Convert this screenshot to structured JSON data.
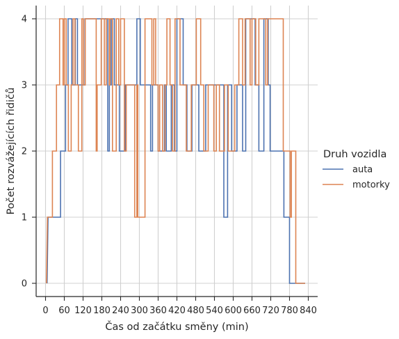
{
  "chart_data": {
    "type": "line",
    "step": true,
    "xlabel": "Čas od začátku směny (min)",
    "ylabel": "Počet rozvážejících řidičů",
    "xlim": [
      -30,
      870
    ],
    "ylim": [
      -0.2,
      4.2
    ],
    "xticks": [
      0,
      60,
      120,
      180,
      240,
      300,
      360,
      420,
      480,
      540,
      600,
      660,
      720,
      780,
      840
    ],
    "yticks": [
      0,
      1,
      2,
      3,
      4
    ],
    "grid": true,
    "legend": {
      "title": "Druh vozidla",
      "placement": "right"
    },
    "series": [
      {
        "name": "auta",
        "color": "#4c72b0",
        "points": [
          [
            5,
            0
          ],
          [
            8,
            1
          ],
          [
            48,
            1
          ],
          [
            48,
            2
          ],
          [
            64,
            2
          ],
          [
            64,
            3
          ],
          [
            72,
            3
          ],
          [
            72,
            4
          ],
          [
            84,
            4
          ],
          [
            84,
            3
          ],
          [
            95,
            3
          ],
          [
            95,
            4
          ],
          [
            102,
            4
          ],
          [
            102,
            3
          ],
          [
            126,
            3
          ],
          [
            126,
            4
          ],
          [
            199,
            4
          ],
          [
            199,
            2
          ],
          [
            204,
            2
          ],
          [
            204,
            3
          ],
          [
            210,
            3
          ],
          [
            210,
            4
          ],
          [
            220,
            4
          ],
          [
            220,
            3
          ],
          [
            236,
            3
          ],
          [
            236,
            2
          ],
          [
            255,
            2
          ],
          [
            255,
            3
          ],
          [
            292,
            3
          ],
          [
            292,
            4
          ],
          [
            303,
            4
          ],
          [
            303,
            3
          ],
          [
            336,
            3
          ],
          [
            336,
            2
          ],
          [
            342,
            2
          ],
          [
            342,
            3
          ],
          [
            360,
            3
          ],
          [
            360,
            2
          ],
          [
            380,
            2
          ],
          [
            380,
            3
          ],
          [
            386,
            3
          ],
          [
            386,
            2
          ],
          [
            402,
            2
          ],
          [
            402,
            3
          ],
          [
            412,
            3
          ],
          [
            412,
            2
          ],
          [
            420,
            2
          ],
          [
            420,
            4
          ],
          [
            440,
            4
          ],
          [
            440,
            3
          ],
          [
            452,
            3
          ],
          [
            452,
            2
          ],
          [
            468,
            2
          ],
          [
            468,
            3
          ],
          [
            490,
            3
          ],
          [
            490,
            2
          ],
          [
            512,
            2
          ],
          [
            512,
            3
          ],
          [
            570,
            3
          ],
          [
            570,
            1
          ],
          [
            582,
            1
          ],
          [
            582,
            3
          ],
          [
            595,
            3
          ],
          [
            595,
            2
          ],
          [
            612,
            2
          ],
          [
            612,
            3
          ],
          [
            630,
            3
          ],
          [
            630,
            2
          ],
          [
            640,
            2
          ],
          [
            640,
            4
          ],
          [
            670,
            4
          ],
          [
            670,
            3
          ],
          [
            682,
            3
          ],
          [
            682,
            2
          ],
          [
            698,
            2
          ],
          [
            698,
            4
          ],
          [
            712,
            4
          ],
          [
            712,
            3
          ],
          [
            718,
            3
          ],
          [
            718,
            2
          ],
          [
            762,
            2
          ],
          [
            762,
            1
          ],
          [
            780,
            1
          ],
          [
            780,
            0
          ],
          [
            830,
            0
          ]
        ]
      },
      {
        "name": "motorky",
        "color": "#dd8452",
        "points": [
          [
            3,
            0
          ],
          [
            6,
            1
          ],
          [
            22,
            1
          ],
          [
            22,
            2
          ],
          [
            35,
            2
          ],
          [
            35,
            3
          ],
          [
            45,
            3
          ],
          [
            45,
            4
          ],
          [
            56,
            4
          ],
          [
            56,
            3
          ],
          [
            60,
            3
          ],
          [
            60,
            4
          ],
          [
            66,
            4
          ],
          [
            66,
            3
          ],
          [
            73,
            3
          ],
          [
            73,
            2
          ],
          [
            82,
            2
          ],
          [
            82,
            3
          ],
          [
            88,
            3
          ],
          [
            88,
            4
          ],
          [
            94,
            4
          ],
          [
            94,
            3
          ],
          [
            105,
            3
          ],
          [
            105,
            2
          ],
          [
            116,
            2
          ],
          [
            116,
            4
          ],
          [
            121,
            4
          ],
          [
            121,
            3
          ],
          [
            127,
            3
          ],
          [
            127,
            4
          ],
          [
            162,
            4
          ],
          [
            162,
            2
          ],
          [
            165,
            2
          ],
          [
            165,
            3
          ],
          [
            178,
            3
          ],
          [
            178,
            4
          ],
          [
            188,
            4
          ],
          [
            188,
            3
          ],
          [
            194,
            3
          ],
          [
            194,
            4
          ],
          [
            204,
            4
          ],
          [
            204,
            3
          ],
          [
            206,
            3
          ],
          [
            206,
            4
          ],
          [
            214,
            4
          ],
          [
            214,
            2
          ],
          [
            226,
            2
          ],
          [
            226,
            4
          ],
          [
            234,
            4
          ],
          [
            234,
            3
          ],
          [
            240,
            3
          ],
          [
            240,
            4
          ],
          [
            252,
            4
          ],
          [
            252,
            2
          ],
          [
            258,
            2
          ],
          [
            258,
            3
          ],
          [
            285,
            3
          ],
          [
            285,
            1
          ],
          [
            292,
            1
          ],
          [
            292,
            3
          ],
          [
            295,
            3
          ],
          [
            295,
            1
          ],
          [
            318,
            1
          ],
          [
            318,
            4
          ],
          [
            340,
            4
          ],
          [
            340,
            3
          ],
          [
            346,
            3
          ],
          [
            346,
            4
          ],
          [
            352,
            4
          ],
          [
            352,
            3
          ],
          [
            360,
            3
          ],
          [
            360,
            2
          ],
          [
            365,
            2
          ],
          [
            365,
            3
          ],
          [
            374,
            3
          ],
          [
            374,
            2
          ],
          [
            382,
            2
          ],
          [
            382,
            3
          ],
          [
            388,
            3
          ],
          [
            388,
            4
          ],
          [
            398,
            4
          ],
          [
            398,
            3
          ],
          [
            406,
            3
          ],
          [
            406,
            2
          ],
          [
            414,
            2
          ],
          [
            414,
            4
          ],
          [
            430,
            4
          ],
          [
            430,
            3
          ],
          [
            450,
            3
          ],
          [
            450,
            2
          ],
          [
            466,
            2
          ],
          [
            466,
            3
          ],
          [
            482,
            3
          ],
          [
            482,
            4
          ],
          [
            496,
            4
          ],
          [
            496,
            3
          ],
          [
            506,
            3
          ],
          [
            506,
            2
          ],
          [
            520,
            2
          ],
          [
            520,
            3
          ],
          [
            538,
            3
          ],
          [
            538,
            2
          ],
          [
            546,
            2
          ],
          [
            546,
            3
          ],
          [
            556,
            3
          ],
          [
            556,
            2
          ],
          [
            572,
            2
          ],
          [
            572,
            3
          ],
          [
            584,
            3
          ],
          [
            584,
            2
          ],
          [
            605,
            2
          ],
          [
            605,
            3
          ],
          [
            618,
            3
          ],
          [
            618,
            4
          ],
          [
            630,
            4
          ],
          [
            630,
            3
          ],
          [
            638,
            3
          ],
          [
            638,
            4
          ],
          [
            654,
            4
          ],
          [
            654,
            3
          ],
          [
            660,
            3
          ],
          [
            660,
            4
          ],
          [
            672,
            4
          ],
          [
            672,
            3
          ],
          [
            682,
            3
          ],
          [
            682,
            4
          ],
          [
            704,
            4
          ],
          [
            704,
            3
          ],
          [
            710,
            3
          ],
          [
            710,
            4
          ],
          [
            760,
            4
          ],
          [
            760,
            2
          ],
          [
            782,
            2
          ],
          [
            782,
            1
          ],
          [
            786,
            1
          ],
          [
            786,
            2
          ],
          [
            800,
            2
          ],
          [
            800,
            0
          ],
          [
            830,
            0
          ]
        ]
      }
    ]
  }
}
